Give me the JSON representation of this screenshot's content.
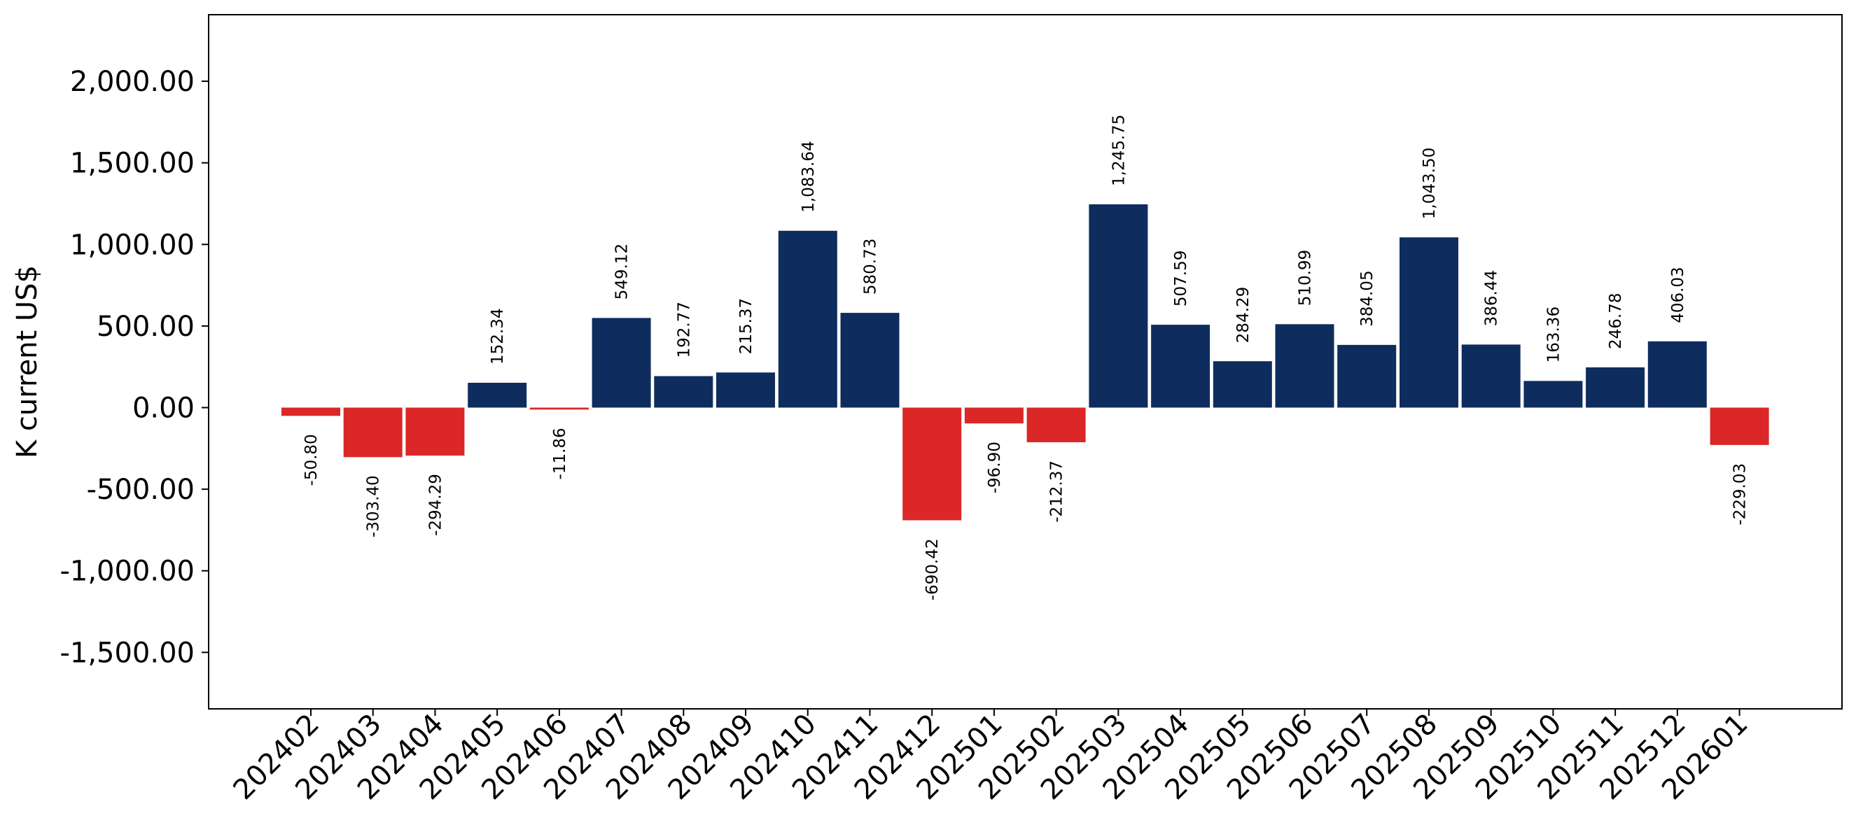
{
  "chart_data": {
    "type": "bar",
    "title": "",
    "xlabel": "",
    "ylabel": "K current US$",
    "categories": [
      "202402",
      "202403",
      "202404",
      "202405",
      "202406",
      "202407",
      "202408",
      "202409",
      "202410",
      "202411",
      "202412",
      "202501",
      "202502",
      "202503",
      "202504",
      "202505",
      "202506",
      "202507",
      "202508",
      "202509",
      "202510",
      "202511",
      "202512",
      "202601"
    ],
    "values": [
      -50.8,
      -303.4,
      -294.29,
      152.34,
      -11.86,
      549.12,
      192.77,
      215.37,
      1083.64,
      580.73,
      -690.42,
      -96.9,
      -212.37,
      1245.75,
      507.59,
      284.29,
      510.99,
      384.05,
      1043.5,
      386.44,
      163.36,
      246.78,
      406.03,
      -229.03
    ],
    "data_labels": [
      "-50.80",
      "-303.40",
      "-294.29",
      "152.34",
      "-11.86",
      "549.12",
      "192.77",
      "215.37",
      "1,083.64",
      "580.73",
      "-690.42",
      "-96.90",
      "-212.37",
      "1,245.75",
      "507.59",
      "284.29",
      "510.99",
      "384.05",
      "1,043.50",
      "386.44",
      "163.36",
      "246.78",
      "406.03",
      "-229.03"
    ],
    "y_ticks": [
      -1500,
      -1000,
      -500,
      0,
      500,
      1000,
      1500,
      2000
    ],
    "y_tick_labels": [
      "-1,500.00",
      "-1,000.00",
      "-500.00",
      "0.00",
      "500.00",
      "1,000.00",
      "1,500.00",
      "2,000.00"
    ],
    "ylim": [
      -1850,
      2400
    ],
    "grid": false,
    "legend": "none",
    "colors": {
      "positive": "#0e2d5e",
      "negative": "#db2727"
    }
  }
}
